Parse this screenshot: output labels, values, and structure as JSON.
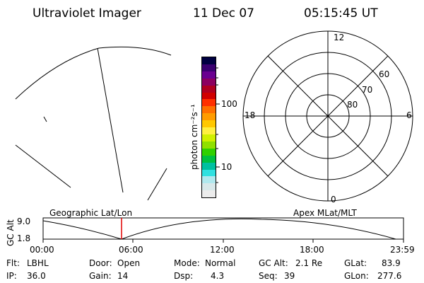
{
  "header": {
    "instrument": "Ultraviolet Imager",
    "date": "11 Dec 07",
    "time": "05:15:45 UT"
  },
  "colorbar": {
    "unit_label": "photon cm⁻²s⁻¹",
    "ticks": [
      "100",
      "10"
    ],
    "colors": [
      "#000040",
      "#3a0070",
      "#6a0090",
      "#8c0060",
      "#b00020",
      "#d00000",
      "#ff3000",
      "#ff7000",
      "#ff9c00",
      "#ffc800",
      "#fff040",
      "#d0f000",
      "#90e000",
      "#30d000",
      "#00c040",
      "#00c0a0",
      "#30e0e0",
      "#b0e8ee",
      "#d8e8ea",
      "#ececec"
    ]
  },
  "polar_plot": {
    "mlt_labels": {
      "top": "12",
      "left": "18",
      "right": "6",
      "bottom": "0"
    },
    "lat_labels": [
      "60",
      "70",
      "80"
    ]
  },
  "timeline": {
    "left_label": "Geographic Lat/Lon",
    "right_label": "Apex MLat/MLT",
    "axis_title": "GC Alt",
    "y_ticks": [
      "9.0",
      "1.8"
    ],
    "x_ticks": [
      "00:00",
      "06:00",
      "12:00",
      "18:00",
      "23:59"
    ]
  },
  "status": {
    "flt_label": "Flt:",
    "flt_value": "LBHL",
    "ip_label": "IP:",
    "ip_value": "36.0",
    "door_label": "Door:",
    "door_value": "Open",
    "gain_label": "Gain:",
    "gain_value": "14",
    "mode_label": "Mode:",
    "mode_value": "Normal",
    "dsp_label": "Dsp:",
    "dsp_value": "4.3",
    "gcalt_label": "GC Alt:",
    "gcalt_value": "2.1 Re",
    "seq_label": "Seq:",
    "seq_value": "39",
    "glat_label": "GLat:",
    "glat_value": "83.9",
    "glon_label": "GLon:",
    "glon_value": "277.6"
  }
}
